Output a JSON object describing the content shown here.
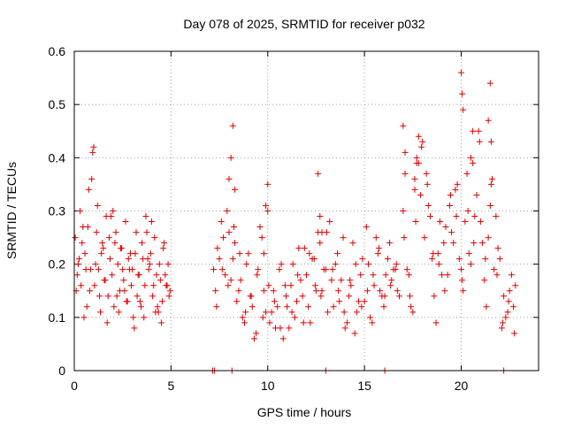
{
  "chart_data": {
    "type": "scatter",
    "title": "Day 078 of 2025, SRMTID for receiver p032",
    "xlabel": "GPS time / hours",
    "ylabel": "SRMTID / TECUs",
    "xlim": [
      0,
      24
    ],
    "ylim": [
      0,
      0.6
    ],
    "xticks": [
      0,
      5,
      10,
      15,
      20
    ],
    "xtick_labels": [
      "0",
      "5",
      "10",
      "15",
      "20"
    ],
    "yticks": [
      0,
      0.1,
      0.2,
      0.3,
      0.4,
      0.5,
      0.6
    ],
    "ytick_labels": [
      "0",
      "0.1",
      "0.2",
      "0.3",
      "0.4",
      "0.5",
      "0.6"
    ],
    "grid": true,
    "marker": "+",
    "color": "#e00000",
    "series": [
      {
        "name": "p032",
        "x": [
          0.05,
          0.15,
          0.25,
          0.35,
          0.45,
          0.55,
          0.65,
          0.75,
          0.85,
          0.95,
          1.05,
          1.15,
          1.25,
          1.35,
          1.45,
          1.55,
          1.65,
          1.75,
          1.85,
          1.95,
          2.05,
          2.15,
          2.25,
          2.35,
          2.45,
          2.55,
          2.65,
          2.75,
          2.85,
          2.95,
          3.05,
          3.15,
          3.25,
          3.35,
          3.45,
          3.55,
          3.65,
          3.75,
          3.85,
          3.95,
          4.05,
          4.15,
          4.25,
          4.35,
          4.45,
          4.55,
          4.65,
          4.75,
          4.85,
          4.95,
          0.1,
          0.3,
          0.5,
          0.7,
          0.9,
          1.1,
          1.3,
          1.5,
          1.7,
          1.9,
          2.1,
          2.3,
          2.5,
          2.7,
          2.9,
          3.1,
          3.3,
          3.5,
          3.7,
          3.9,
          4.1,
          4.3,
          4.5,
          4.7,
          4.9,
          0.2,
          0.4,
          0.6,
          0.8,
          1.0,
          1.2,
          1.4,
          1.6,
          1.8,
          2.0,
          2.2,
          2.4,
          2.6,
          2.8,
          3.0,
          3.2,
          3.4,
          3.6,
          3.8,
          4.0,
          4.2,
          4.4,
          4.6,
          4.8,
          7.2,
          7.4,
          7.6,
          7.8,
          8.0,
          8.2,
          8.4,
          8.6,
          8.8,
          9.0,
          9.2,
          9.4,
          9.6,
          9.8,
          10.0,
          10.2,
          10.4,
          10.6,
          10.8,
          11.0,
          11.2,
          11.4,
          11.6,
          11.8,
          12.0,
          12.2,
          12.4,
          12.6,
          12.8,
          13.0,
          13.2,
          13.4,
          13.6,
          13.8,
          14.0,
          14.2,
          14.4,
          14.6,
          14.8,
          15.0,
          15.2,
          15.4,
          15.6,
          15.8,
          16.0,
          16.2,
          16.4,
          16.6,
          16.8,
          7.3,
          7.5,
          7.7,
          7.9,
          8.1,
          8.3,
          8.5,
          8.7,
          8.9,
          9.1,
          9.3,
          9.5,
          9.7,
          9.9,
          10.1,
          10.3,
          10.5,
          10.7,
          10.9,
          11.1,
          11.3,
          11.5,
          11.7,
          11.9,
          12.1,
          12.3,
          12.5,
          12.7,
          12.9,
          13.1,
          13.3,
          13.5,
          13.7,
          13.9,
          14.1,
          14.3,
          14.5,
          14.7,
          14.9,
          15.1,
          15.3,
          15.5,
          15.7,
          15.9,
          16.1,
          16.3,
          16.5,
          16.7,
          7.35,
          7.65,
          7.95,
          8.25,
          8.55,
          8.85,
          9.15,
          9.45,
          9.75,
          10.05,
          10.35,
          10.65,
          10.95,
          11.25,
          11.55,
          11.85,
          12.15,
          12.45,
          12.75,
          13.05,
          13.35,
          13.65,
          13.95,
          14.25,
          14.55,
          14.85,
          15.15,
          15.45,
          15.75,
          16.05,
          16.35,
          16.65,
          8.0,
          8.1,
          8.2,
          8.3,
          9.8,
          9.9,
          10.0,
          12.6,
          12.7,
          12.8,
          17.0,
          17.2,
          17.4,
          17.6,
          17.8,
          18.0,
          18.2,
          18.4,
          18.6,
          18.8,
          19.0,
          19.2,
          19.4,
          19.6,
          19.8,
          20.0,
          20.2,
          20.4,
          20.6,
          20.8,
          21.0,
          21.2,
          21.4,
          21.6,
          21.8,
          22.0,
          22.2,
          22.4,
          22.6,
          22.8,
          17.1,
          17.3,
          17.5,
          17.7,
          17.9,
          18.1,
          18.3,
          18.5,
          18.7,
          18.9,
          19.1,
          19.3,
          19.5,
          19.7,
          19.9,
          20.1,
          20.3,
          20.5,
          20.7,
          20.9,
          21.1,
          21.3,
          21.5,
          21.7,
          21.9,
          22.1,
          22.3,
          22.5,
          22.7,
          17.05,
          17.35,
          17.65,
          17.95,
          18.25,
          18.55,
          18.85,
          19.15,
          19.45,
          19.75,
          20.05,
          20.35,
          20.65,
          20.95,
          21.25,
          21.55,
          21.85,
          22.15,
          22.45,
          22.75,
          17.0,
          17.1,
          17.6,
          17.7,
          17.8,
          20.0,
          20.05,
          20.1,
          20.5,
          20.6,
          21.4,
          21.5,
          21.55,
          7.15,
          7.25,
          8.15,
          13.0,
          16.05,
          22.2
        ],
        "y": [
          0.25,
          0.18,
          0.21,
          0.16,
          0.27,
          0.22,
          0.12,
          0.34,
          0.19,
          0.41,
          0.16,
          0.26,
          0.19,
          0.11,
          0.24,
          0.17,
          0.29,
          0.14,
          0.21,
          0.18,
          0.12,
          0.26,
          0.2,
          0.15,
          0.23,
          0.17,
          0.28,
          0.13,
          0.19,
          0.16,
          0.1,
          0.22,
          0.14,
          0.18,
          0.12,
          0.21,
          0.16,
          0.26,
          0.19,
          0.22,
          0.14,
          0.25,
          0.18,
          0.11,
          0.17,
          0.13,
          0.24,
          0.16,
          0.2,
          0.15,
          0.15,
          0.3,
          0.1,
          0.27,
          0.36,
          0.2,
          0.14,
          0.23,
          0.09,
          0.29,
          0.24,
          0.11,
          0.19,
          0.13,
          0.22,
          0.08,
          0.18,
          0.24,
          0.29,
          0.2,
          0.16,
          0.12,
          0.09,
          0.18,
          0.14,
          0.2,
          0.24,
          0.19,
          0.15,
          0.42,
          0.31,
          0.22,
          0.17,
          0.25,
          0.3,
          0.14,
          0.23,
          0.15,
          0.21,
          0.19,
          0.26,
          0.13,
          0.1,
          0.21,
          0.28,
          0.11,
          0.2,
          0.23,
          0.16,
          0.19,
          0.23,
          0.28,
          0.18,
          0.26,
          0.21,
          0.13,
          0.17,
          0.09,
          0.22,
          0.12,
          0.07,
          0.27,
          0.15,
          0.3,
          0.11,
          0.08,
          0.19,
          0.06,
          0.12,
          0.16,
          0.1,
          0.23,
          0.14,
          0.18,
          0.09,
          0.21,
          0.26,
          0.15,
          0.19,
          0.28,
          0.12,
          0.22,
          0.17,
          0.08,
          0.14,
          0.24,
          0.11,
          0.18,
          0.13,
          0.2,
          0.09,
          0.25,
          0.15,
          0.12,
          0.21,
          0.17,
          0.19,
          0.14,
          0.15,
          0.21,
          0.25,
          0.3,
          0.17,
          0.24,
          0.15,
          0.1,
          0.2,
          0.14,
          0.06,
          0.19,
          0.25,
          0.11,
          0.09,
          0.15,
          0.12,
          0.2,
          0.16,
          0.08,
          0.2,
          0.13,
          0.17,
          0.23,
          0.12,
          0.21,
          0.15,
          0.24,
          0.19,
          0.11,
          0.17,
          0.2,
          0.13,
          0.25,
          0.09,
          0.16,
          0.07,
          0.13,
          0.21,
          0.27,
          0.1,
          0.16,
          0.22,
          0.14,
          0.18,
          0.24,
          0.19,
          0.15,
          0.12,
          0.19,
          0.16,
          0.27,
          0.22,
          0.11,
          0.14,
          0.18,
          0.1,
          0.16,
          0.13,
          0.08,
          0.14,
          0.11,
          0.18,
          0.09,
          0.22,
          0.16,
          0.14,
          0.26,
          0.19,
          0.15,
          0.11,
          0.17,
          0.2,
          0.12,
          0.15,
          0.18,
          0.23,
          0.14,
          0.16,
          0.2,
          0.36,
          0.4,
          0.46,
          0.34,
          0.22,
          0.31,
          0.35,
          0.37,
          0.29,
          0.26,
          0.3,
          0.19,
          0.12,
          0.34,
          0.39,
          0.43,
          0.37,
          0.29,
          0.14,
          0.22,
          0.18,
          0.27,
          0.31,
          0.24,
          0.35,
          0.19,
          0.28,
          0.22,
          0.39,
          0.33,
          0.28,
          0.17,
          0.25,
          0.36,
          0.29,
          0.21,
          0.14,
          0.11,
          0.18,
          0.16,
          0.37,
          0.18,
          0.11,
          0.4,
          0.33,
          0.25,
          0.31,
          0.21,
          0.09,
          0.28,
          0.24,
          0.18,
          0.26,
          0.34,
          0.21,
          0.15,
          0.37,
          0.2,
          0.29,
          0.45,
          0.24,
          0.12,
          0.31,
          0.19,
          0.23,
          0.08,
          0.1,
          0.15,
          0.12,
          0.25,
          0.14,
          0.28,
          0.42,
          0.35,
          0.22,
          0.2,
          0.15,
          0.33,
          0.29,
          0.17,
          0.3,
          0.24,
          0.43,
          0.21,
          0.35,
          0.18,
          0.09,
          0.13,
          0.07,
          0.46,
          0.41,
          0.36,
          0.39,
          0.44,
          0.56,
          0.52,
          0.49,
          0.4,
          0.45,
          0.47,
          0.54,
          0.43,
          0,
          0,
          0,
          0,
          0,
          0
        ]
      }
    ]
  }
}
